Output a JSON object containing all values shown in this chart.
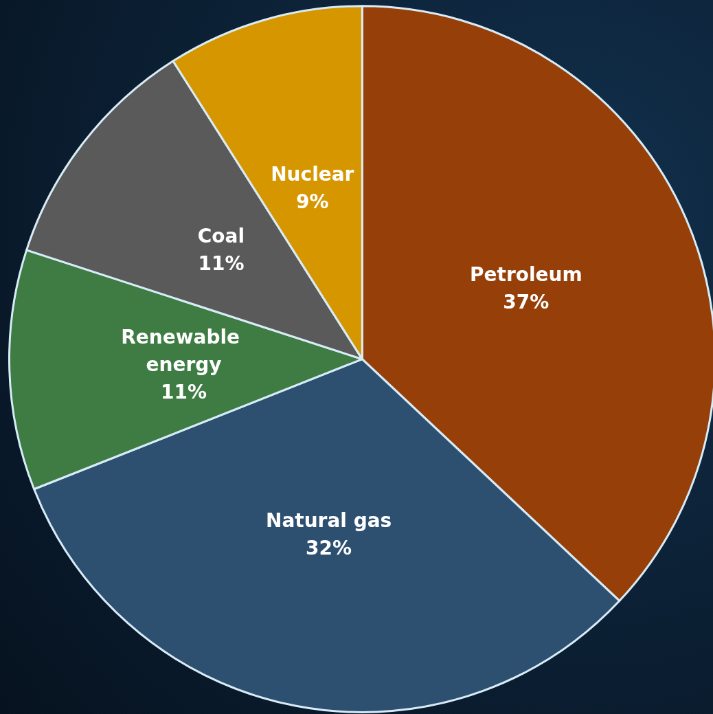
{
  "chart_data": {
    "type": "pie",
    "categories": [
      "Petroleum",
      "Natural gas",
      "Renewable energy",
      "Coal",
      "Nuclear"
    ],
    "values": [
      37,
      32,
      11,
      11,
      9
    ],
    "colors": [
      "#963f08",
      "#2d5070",
      "#3e7c43",
      "#5a5a5a",
      "#d69600"
    ],
    "value_labels": [
      "37%",
      "32%",
      "11%",
      "11%",
      "9%"
    ],
    "legend": false
  }
}
